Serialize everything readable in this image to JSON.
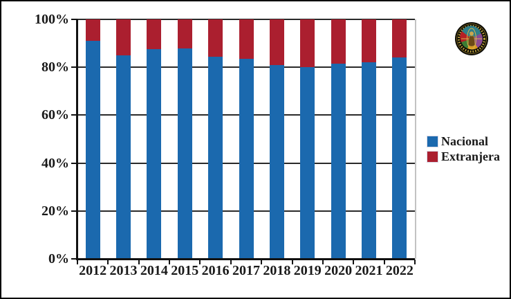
{
  "chart_data": {
    "type": "bar",
    "stacked": true,
    "title": "",
    "categories": [
      "2012",
      "2013",
      "2014",
      "2015",
      "2016",
      "2017",
      "2018",
      "2019",
      "2020",
      "2021",
      "2022"
    ],
    "series": [
      {
        "name": "Nacional",
        "color": "#1b69ae",
        "values": [
          91,
          85,
          87.5,
          88,
          84.5,
          83.5,
          81,
          80,
          81.5,
          82,
          84
        ]
      },
      {
        "name": "Extranjera",
        "color": "#ab1f2f",
        "values": [
          9,
          15,
          12.5,
          12,
          15.5,
          16.5,
          19,
          20,
          18.5,
          18,
          16
        ]
      }
    ],
    "unit": "%",
    "ylim": [
      0,
      100
    ],
    "y_tick_labels": [
      "0%",
      "20%",
      "40%",
      "60%",
      "80%",
      "100%"
    ],
    "xlabel": "",
    "ylabel": "",
    "grid": true,
    "legend_position": "right-middle"
  },
  "colors": {
    "nacional_blue": "#1b69ae",
    "extranjera_red": "#ab1f2f",
    "gridline": "#2a2a2a",
    "frame_border": "#000000"
  },
  "icons": {
    "logo": "organization-seal-icon"
  }
}
